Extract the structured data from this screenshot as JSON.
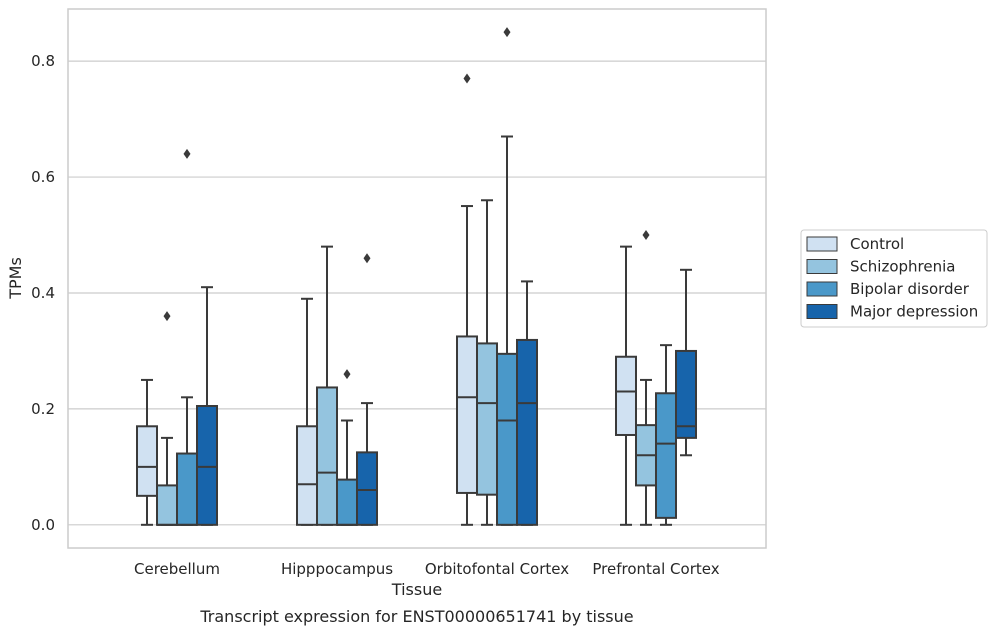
{
  "caption": "Transcript expression for ENST00000651741 by tissue",
  "chart_data": {
    "type": "boxplot",
    "xlabel": "Tissue",
    "ylabel": "TPMs",
    "ylim": [
      -0.04,
      0.89
    ],
    "yticks": [
      "0.0",
      "0.2",
      "0.4",
      "0.6",
      "0.8"
    ],
    "grid": "horizontal",
    "legend_placement": "right",
    "categories": [
      "Cerebellum",
      "Hipppocampus",
      "Orbitofontal Cortex",
      "Prefrontal Cortex"
    ],
    "series": [
      {
        "name": "Control",
        "color": "#d0e1f2",
        "boxes": [
          {
            "whislo": 0.0,
            "q1": 0.05,
            "med": 0.1,
            "q3": 0.17,
            "whishi": 0.25,
            "fliers": []
          },
          {
            "whislo": 0.0,
            "q1": 0.0,
            "med": 0.07,
            "q3": 0.17,
            "whishi": 0.39,
            "fliers": []
          },
          {
            "whislo": 0.0,
            "q1": 0.055,
            "med": 0.22,
            "q3": 0.325,
            "whishi": 0.55,
            "fliers": [
              0.77
            ]
          },
          {
            "whislo": 0.0,
            "q1": 0.155,
            "med": 0.23,
            "q3": 0.29,
            "whishi": 0.48,
            "fliers": []
          }
        ]
      },
      {
        "name": "Schizophrenia",
        "color": "#94c4df",
        "boxes": [
          {
            "whislo": 0.0,
            "q1": 0.0,
            "med": 0.0,
            "q3": 0.068,
            "whishi": 0.15,
            "fliers": [
              0.36
            ]
          },
          {
            "whislo": 0.0,
            "q1": 0.0,
            "med": 0.09,
            "q3": 0.237,
            "whishi": 0.48,
            "fliers": []
          },
          {
            "whislo": 0.0,
            "q1": 0.052,
            "med": 0.21,
            "q3": 0.313,
            "whishi": 0.56,
            "fliers": []
          },
          {
            "whislo": 0.0,
            "q1": 0.068,
            "med": 0.12,
            "q3": 0.172,
            "whishi": 0.25,
            "fliers": [
              0.5
            ]
          }
        ]
      },
      {
        "name": "Bipolar disorder",
        "color": "#4a98c9",
        "boxes": [
          {
            "whislo": 0.0,
            "q1": 0.0,
            "med": 0.0,
            "q3": 0.123,
            "whishi": 0.22,
            "fliers": [
              0.64
            ]
          },
          {
            "whislo": 0.0,
            "q1": 0.0,
            "med": 0.0,
            "q3": 0.078,
            "whishi": 0.18,
            "fliers": [
              0.26
            ]
          },
          {
            "whislo": 0.0,
            "q1": 0.0,
            "med": 0.18,
            "q3": 0.295,
            "whishi": 0.67,
            "fliers": [
              0.85
            ]
          },
          {
            "whislo": 0.0,
            "q1": 0.012,
            "med": 0.14,
            "q3": 0.227,
            "whishi": 0.31,
            "fliers": []
          }
        ]
      },
      {
        "name": "Major depression",
        "color": "#1764ab",
        "boxes": [
          {
            "whislo": 0.0,
            "q1": 0.0,
            "med": 0.1,
            "q3": 0.205,
            "whishi": 0.41,
            "fliers": []
          },
          {
            "whislo": 0.0,
            "q1": 0.0,
            "med": 0.06,
            "q3": 0.125,
            "whishi": 0.21,
            "fliers": [
              0.46
            ]
          },
          {
            "whislo": 0.0,
            "q1": 0.0,
            "med": 0.21,
            "q3": 0.319,
            "whishi": 0.42,
            "fliers": []
          },
          {
            "whislo": 0.12,
            "q1": 0.15,
            "med": 0.17,
            "q3": 0.3,
            "whishi": 0.44,
            "fliers": []
          }
        ]
      }
    ]
  }
}
